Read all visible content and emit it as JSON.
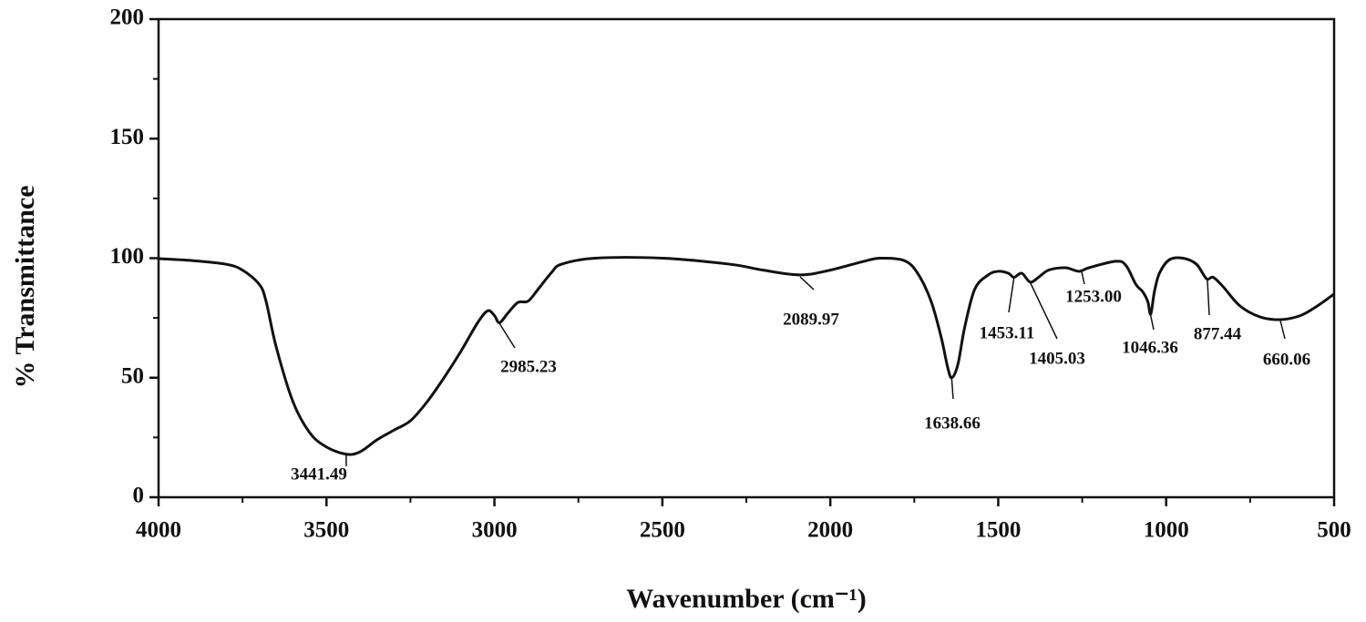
{
  "chart_data": {
    "type": "line",
    "xlabel": "Wavenumber (cm⁻¹)",
    "ylabel": "% Transmittance",
    "xlim": [
      4000,
      500
    ],
    "ylim": [
      0,
      200
    ],
    "xticks": [
      4000,
      3500,
      3000,
      2500,
      2000,
      1500,
      1000,
      500
    ],
    "yticks": [
      0,
      50,
      100,
      150,
      200
    ],
    "xminorticks": [
      3750,
      3250,
      2750,
      2250,
      1750,
      1250,
      750
    ],
    "yminorticks": [
      25,
      75,
      125,
      175
    ],
    "color": "#111111",
    "series": [
      {
        "x": [
          4000,
          3900,
          3800,
          3750,
          3700,
          3680,
          3650,
          3600,
          3550,
          3500,
          3441,
          3400,
          3350,
          3300,
          3250,
          3200,
          3150,
          3100,
          3050,
          3020,
          3000,
          2985,
          2960,
          2930,
          2900,
          2870,
          2830,
          2800,
          2700,
          2500,
          2300,
          2200,
          2090,
          2000,
          1900,
          1850,
          1780,
          1740,
          1700,
          1670,
          1650,
          1638,
          1620,
          1600,
          1570,
          1530,
          1500,
          1470,
          1453,
          1430,
          1405,
          1380,
          1350,
          1300,
          1260,
          1230,
          1150,
          1120,
          1090,
          1070,
          1055,
          1046,
          1035,
          1020,
          990,
          950,
          910,
          880,
          860,
          830,
          780,
          720,
          660,
          600,
          550,
          500
        ],
        "values": [
          99.8,
          99,
          97.5,
          95,
          89,
          82,
          63,
          40,
          27,
          21,
          18,
          19,
          24,
          28,
          32,
          40,
          50,
          61,
          73,
          78,
          76,
          73,
          77,
          81.5,
          82,
          87,
          94,
          97.5,
          100,
          100,
          97.5,
          95,
          93,
          95,
          98.7,
          100,
          99,
          93.7,
          82,
          67,
          54,
          50,
          55.6,
          71,
          87,
          93,
          94.5,
          93.7,
          92,
          93.7,
          90,
          92,
          95,
          96,
          94.5,
          96,
          98.7,
          97,
          89,
          86,
          82,
          76.6,
          86,
          93.7,
          99.4,
          100,
          97.5,
          91.4,
          92,
          88,
          80,
          75.4,
          74.3,
          76,
          80,
          85
        ]
      }
    ],
    "annotations": [
      {
        "x": 3441.49,
        "label": "3441.49"
      },
      {
        "x": 2985.23,
        "label": "2985.23"
      },
      {
        "x": 2089.97,
        "label": "2089.97"
      },
      {
        "x": 1638.66,
        "label": "1638.66"
      },
      {
        "x": 1453.11,
        "label": "1453.11"
      },
      {
        "x": 1405.03,
        "label": "1405.03"
      },
      {
        "x": 1253.0,
        "label": "1253.00"
      },
      {
        "x": 1046.36,
        "label": "1046.36"
      },
      {
        "x": 877.44,
        "label": "877.44"
      },
      {
        "x": 660.06,
        "label": "660.06"
      }
    ]
  }
}
